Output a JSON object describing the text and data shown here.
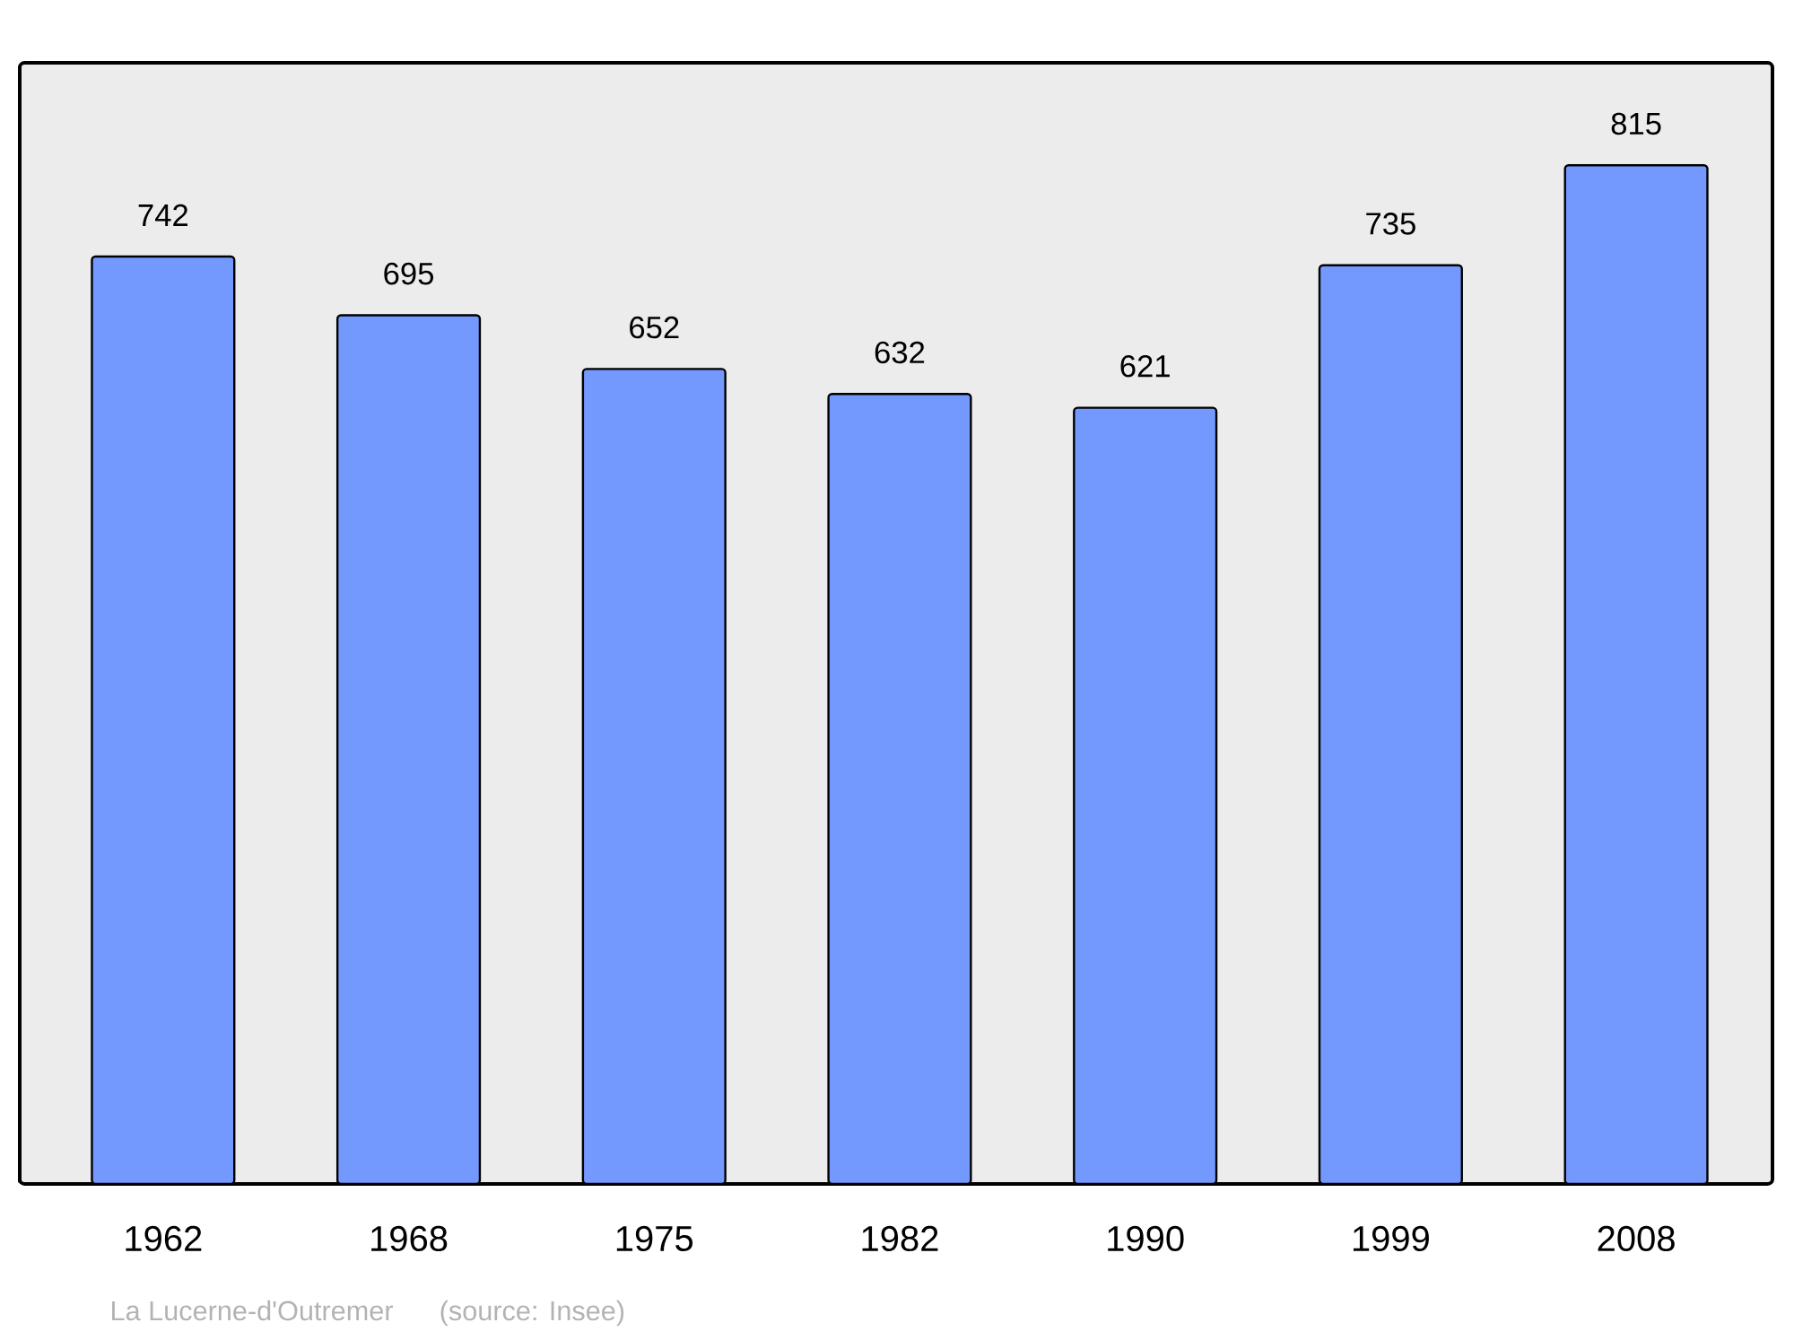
{
  "chart_data": {
    "type": "bar",
    "categories": [
      "1962",
      "1968",
      "1975",
      "1982",
      "1990",
      "1999",
      "2008"
    ],
    "values": [
      742,
      695,
      652,
      632,
      621,
      735,
      815
    ],
    "color": "#7399ff",
    "data_labels": true,
    "ylim": [
      0,
      897
    ],
    "annotations": [
      "La Lucerne-d'Outremer",
      "(source: Insee)"
    ]
  }
}
